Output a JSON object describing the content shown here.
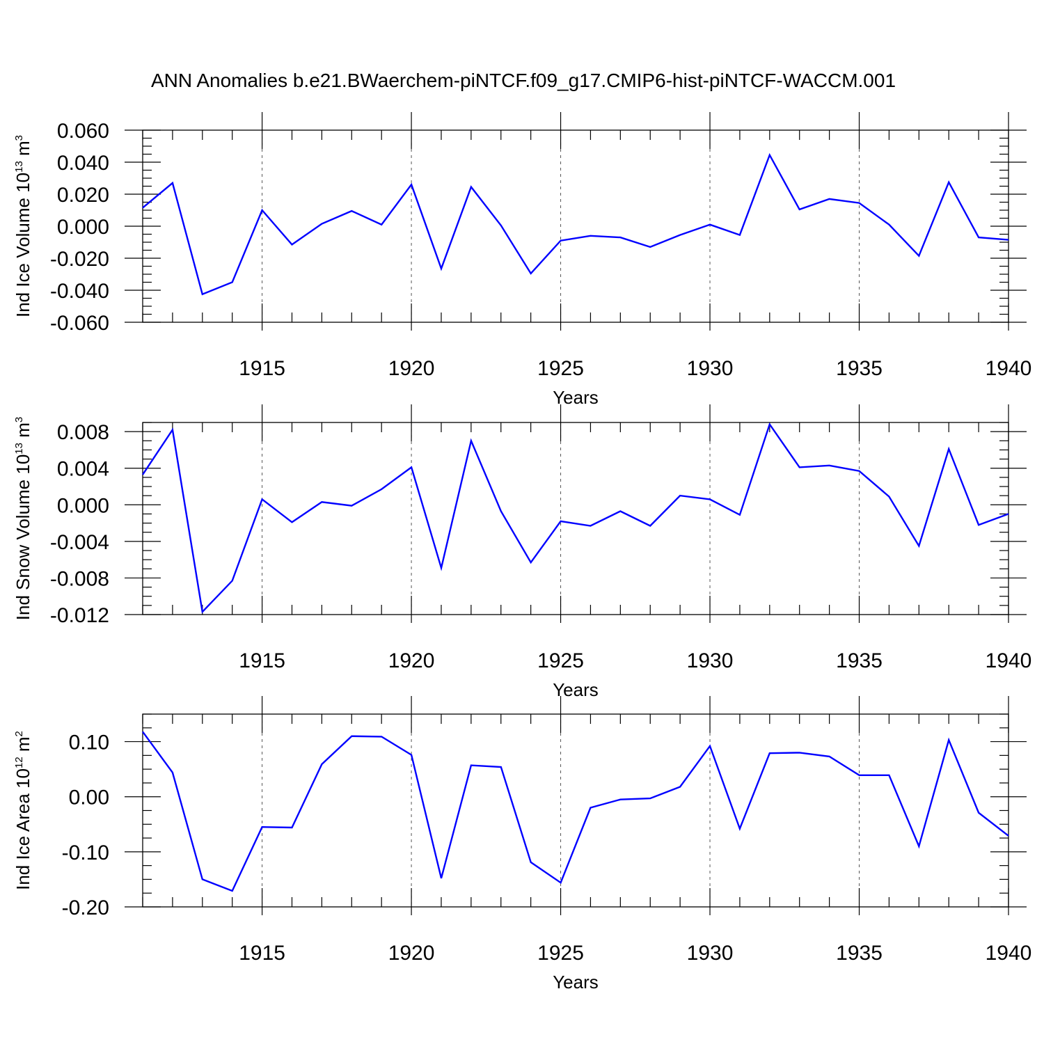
{
  "title": "ANN Anomalies b.e21.BWaerchem-piNTCF.f09_g17.CMIP6-hist-piNTCF-WACCM.001",
  "colors": {
    "line": "#0000ff",
    "axis": "#000000",
    "grid": "#555555"
  },
  "chart_data": [
    {
      "type": "line",
      "ylabel_prefix": "Ind Ice Volume 10",
      "ylabel_exp": "13",
      "ylabel_unit": " m",
      "ylabel_unit_exp": "3",
      "xlabel": "Years",
      "xlim": [
        1911,
        1940
      ],
      "ylim": [
        -0.06,
        0.06
      ],
      "grid": true,
      "xticks": [
        1915,
        1920,
        1925,
        1930,
        1935,
        1940
      ],
      "yticks": [
        -0.06,
        -0.04,
        -0.02,
        0.0,
        0.02,
        0.04,
        0.06
      ],
      "yticklabels": [
        "-0.060",
        "-0.040",
        "-0.020",
        "0.000",
        "0.020",
        "0.040",
        "0.060"
      ],
      "x": [
        1911,
        1912,
        1913,
        1914,
        1915,
        1916,
        1917,
        1918,
        1919,
        1920,
        1921,
        1922,
        1923,
        1924,
        1925,
        1926,
        1927,
        1928,
        1929,
        1930,
        1931,
        1932,
        1933,
        1934,
        1935,
        1936,
        1937,
        1938,
        1939,
        1940
      ],
      "values": [
        0.0115,
        0.027,
        -0.0425,
        -0.035,
        0.01,
        -0.0115,
        0.0015,
        0.0095,
        0.001,
        0.026,
        -0.0265,
        0.0245,
        0.0005,
        -0.0295,
        -0.009,
        -0.006,
        -0.007,
        -0.013,
        -0.0055,
        0.001,
        -0.0055,
        0.0445,
        0.0105,
        0.017,
        0.0145,
        0.001,
        -0.0185,
        0.0275,
        -0.007,
        -0.0085
      ]
    },
    {
      "type": "line",
      "ylabel_prefix": "Ind Snow Volume 10",
      "ylabel_exp": "13",
      "ylabel_unit": " m",
      "ylabel_unit_exp": "3",
      "xlabel": "Years",
      "xlim": [
        1911,
        1940
      ],
      "ylim": [
        -0.012,
        0.009
      ],
      "grid": true,
      "xticks": [
        1915,
        1920,
        1925,
        1930,
        1935,
        1940
      ],
      "yticks": [
        -0.012,
        -0.008,
        -0.004,
        0.0,
        0.004,
        0.008
      ],
      "yticklabels": [
        "-0.012",
        "-0.008",
        "-0.004",
        "0.000",
        "0.004",
        "0.008"
      ],
      "x": [
        1911,
        1912,
        1913,
        1914,
        1915,
        1916,
        1917,
        1918,
        1919,
        1920,
        1921,
        1922,
        1923,
        1924,
        1925,
        1926,
        1927,
        1928,
        1929,
        1930,
        1931,
        1932,
        1933,
        1934,
        1935,
        1936,
        1937,
        1938,
        1939,
        1940
      ],
      "values": [
        0.0033,
        0.0082,
        -0.0117,
        -0.0083,
        0.0006,
        -0.0019,
        0.0003,
        -0.0001,
        0.0017,
        0.0041,
        -0.0069,
        0.007,
        -0.0007,
        -0.0063,
        -0.0018,
        -0.0023,
        -0.0007,
        -0.0023,
        0.001,
        0.0006,
        -0.0011,
        0.0088,
        0.0041,
        0.0043,
        0.0037,
        0.0009,
        -0.0045,
        0.0061,
        -0.0022,
        -0.001
      ]
    },
    {
      "type": "line",
      "ylabel_prefix": "Ind Ice Area 10",
      "ylabel_exp": "12",
      "ylabel_unit": " m",
      "ylabel_unit_exp": "2",
      "xlabel": "Years",
      "xlim": [
        1911,
        1940
      ],
      "ylim": [
        -0.2,
        0.15
      ],
      "grid": true,
      "xticks": [
        1915,
        1920,
        1925,
        1930,
        1935,
        1940
      ],
      "yticks": [
        -0.2,
        -0.1,
        0.0,
        0.1
      ],
      "yticklabels": [
        "-0.20",
        "-0.10",
        "0.00",
        "0.10"
      ],
      "x": [
        1911,
        1912,
        1913,
        1914,
        1915,
        1916,
        1917,
        1918,
        1919,
        1920,
        1921,
        1922,
        1923,
        1924,
        1925,
        1926,
        1927,
        1928,
        1929,
        1930,
        1931,
        1932,
        1933,
        1934,
        1935,
        1936,
        1937,
        1938,
        1939,
        1940
      ],
      "values": [
        0.118,
        0.044,
        -0.15,
        -0.171,
        -0.055,
        -0.056,
        0.059,
        0.11,
        0.109,
        0.076,
        -0.148,
        0.057,
        0.054,
        -0.119,
        -0.156,
        -0.02,
        -0.005,
        -0.003,
        0.018,
        0.092,
        -0.058,
        0.079,
        0.08,
        0.073,
        0.039,
        0.039,
        -0.09,
        0.103,
        -0.029,
        -0.071
      ]
    }
  ]
}
